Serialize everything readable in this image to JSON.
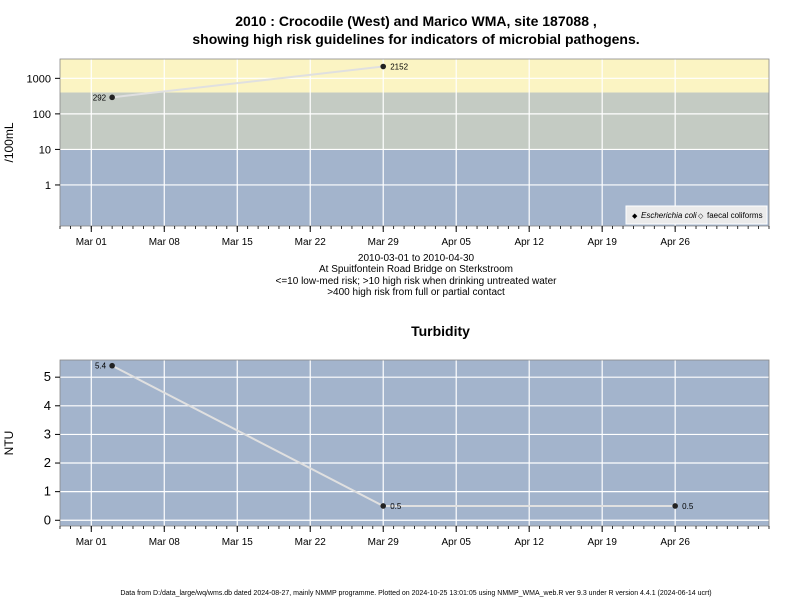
{
  "header": {
    "title_line1": "2010 : Crocodile (West) and Marico WMA, site 187088 ,",
    "title_line2": "showing high risk guidelines for indicators of microbial pathogens."
  },
  "caption": {
    "line1": "2010-03-01 to 2010-04-30",
    "line2": "At Spuitfontein Road Bridge on Sterkstroom",
    "line3": "<=10 low-med risk; >10 high risk when drinking untreated water",
    "line4": ">400 high risk from full or partial contact"
  },
  "footer": {
    "text": "Data from D:/data_large/wq/wms.db dated 2024-08-27, mainly NMMP programme. Plotted on 2024-10-25 13:01:05 using NMMP_WMA_web.R ver 9.3 under R version 4.4.1 (2024-06-14 ucrt)"
  },
  "colors": {
    "band_low": "#a3b4cc",
    "band_mid": "#c4cbc3",
    "band_high": "#fbf4c3",
    "grid": "#ffffff",
    "series_line": "#e0e0e0",
    "point": "#222222"
  },
  "chart_data": [
    {
      "type": "line",
      "title": "",
      "ylabel": "/100mL",
      "xlabel": "",
      "yscale": "log",
      "x_ticks": [
        "Mar 01",
        "Mar 08",
        "Mar 15",
        "Mar 22",
        "Mar 29",
        "Apr 05",
        "Apr 12",
        "Apr 19",
        "Apr 26"
      ],
      "y_ticks": [
        "1",
        "10",
        "100",
        "1000"
      ],
      "xlim": [
        "2010-02-26",
        "2010-05-05"
      ],
      "ylim": [
        0.07,
        3500
      ],
      "grid": true,
      "risk_bands": [
        {
          "from": 0,
          "to": 10,
          "color": "#a3b4cc"
        },
        {
          "from": 10,
          "to": 400,
          "color": "#c4cbc3"
        },
        {
          "from": 400,
          "to": 3500,
          "color": "#fbf4c3"
        }
      ],
      "legend": {
        "position": "bottom-right",
        "entries": [
          {
            "label": "Escherichia coli",
            "marker": "◆",
            "italic": true
          },
          {
            "label": "faecal coliforms",
            "marker": "◇",
            "italic": false
          }
        ]
      },
      "series": [
        {
          "name": "Escherichia coli",
          "points": [
            {
              "x": "2010-03-03",
              "y": 292,
              "label": "292"
            },
            {
              "x": "2010-03-29",
              "y": 2152,
              "label": "2152"
            }
          ]
        }
      ]
    },
    {
      "type": "line",
      "title": "Turbidity",
      "ylabel": "NTU",
      "xlabel": "",
      "yscale": "linear",
      "x_ticks": [
        "Mar 01",
        "Mar 08",
        "Mar 15",
        "Mar 22",
        "Mar 29",
        "Apr 05",
        "Apr 12",
        "Apr 19",
        "Apr 26"
      ],
      "y_ticks": [
        "0",
        "1",
        "2",
        "3",
        "4",
        "5"
      ],
      "xlim": [
        "2010-02-26",
        "2010-05-05"
      ],
      "ylim": [
        -0.2,
        5.6
      ],
      "grid": true,
      "series": [
        {
          "name": "",
          "points": [
            {
              "x": "2010-03-03",
              "y": 5.4,
              "label": "5.4"
            },
            {
              "x": "2010-03-29",
              "y": 0.5,
              "label": "0.5"
            },
            {
              "x": "2010-04-26",
              "y": 0.5,
              "label": "0.5"
            }
          ]
        }
      ]
    }
  ]
}
